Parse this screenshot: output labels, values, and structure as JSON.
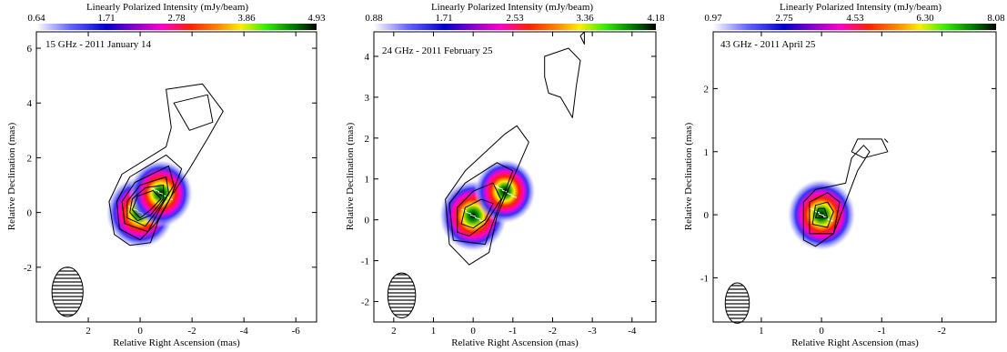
{
  "chart_data": [
    {
      "type": "heatmap",
      "epoch_label": "15 GHz - 2011 January 14",
      "colorbar": {
        "title": "Linearly Polarized Intensity (mJy/beam)",
        "ticks": [
          0.64,
          1.71,
          2.78,
          3.86,
          4.93
        ],
        "range": [
          0.64,
          4.93
        ]
      },
      "xlabel": "Relative Right Ascension (mas)",
      "ylabel": "Relative Declination (mas)",
      "xlim": [
        4.0,
        -6.8
      ],
      "ylim": [
        -4.0,
        6.6
      ],
      "xticks": [
        2,
        0,
        -2,
        -4,
        -6
      ],
      "yticks": [
        -2,
        0,
        2,
        4,
        6
      ],
      "polarization_peaks": [
        {
          "x": 0.0,
          "y": 0.0,
          "value": 4.93
        },
        {
          "x": -0.8,
          "y": 0.7,
          "value": 4.5
        }
      ],
      "contours": [
        [
          [
            1.0,
            -0.8
          ],
          [
            1.2,
            0.4
          ],
          [
            0.7,
            1.4
          ],
          [
            -1.0,
            2.4
          ],
          [
            -1.2,
            3.1
          ],
          [
            -1.0,
            4.5
          ],
          [
            -2.4,
            4.7
          ],
          [
            -3.2,
            3.7
          ],
          [
            -2.6,
            2.7
          ],
          [
            -1.9,
            1.6
          ],
          [
            -1.2,
            0.6
          ],
          [
            -0.7,
            -0.3
          ],
          [
            -0.4,
            -1.1
          ],
          [
            0.4,
            -1.2
          ]
        ],
        [
          [
            -1.3,
            4.0
          ],
          [
            -2.6,
            4.3
          ],
          [
            -2.8,
            3.3
          ],
          [
            -1.9,
            3.0
          ]
        ],
        [
          [
            0.8,
            -0.6
          ],
          [
            0.9,
            0.4
          ],
          [
            0.4,
            1.3
          ],
          [
            -1.0,
            2.1
          ],
          [
            -1.6,
            1.6
          ],
          [
            -1.2,
            0.6
          ],
          [
            -0.6,
            -0.4
          ],
          [
            0.0,
            -1.0
          ]
        ],
        [
          [
            0.6,
            -0.4
          ],
          [
            0.7,
            0.4
          ],
          [
            0.2,
            1.1
          ],
          [
            -1.1,
            1.7
          ],
          [
            -1.3,
            1.0
          ],
          [
            -0.8,
            0.2
          ],
          [
            -0.3,
            -0.7
          ]
        ],
        [
          [
            0.5,
            -0.2
          ],
          [
            0.5,
            0.4
          ],
          [
            0.0,
            1.0
          ],
          [
            -1.0,
            1.3
          ],
          [
            -1.1,
            0.7
          ],
          [
            -0.6,
            0.0
          ],
          [
            -0.2,
            -0.5
          ]
        ],
        [
          [
            0.4,
            0.0
          ],
          [
            0.3,
            0.5
          ],
          [
            -0.2,
            0.9
          ],
          [
            -0.9,
            1.0
          ],
          [
            -0.9,
            0.5
          ],
          [
            -0.4,
            -0.1
          ],
          [
            0.1,
            -0.3
          ]
        ],
        [
          [
            0.3,
            0.1
          ],
          [
            0.1,
            0.6
          ],
          [
            -0.5,
            0.8
          ],
          [
            -0.8,
            0.5
          ],
          [
            -0.4,
            0.1
          ],
          [
            0.0,
            -0.2
          ]
        ]
      ],
      "beam": {
        "x": 2.8,
        "y": -2.9,
        "major": 0.9,
        "minor": 0.6
      }
    },
    {
      "type": "heatmap",
      "epoch_label": "24 GHz - 2011 February 25",
      "colorbar": {
        "title": "Linearly Polarized Intensity (mJy/beam)",
        "ticks": [
          0.88,
          1.71,
          2.53,
          3.36,
          4.18
        ],
        "range": [
          0.88,
          4.18
        ]
      },
      "xlabel": "Relative Right Ascension (mas)",
      "ylabel": "Relative Declination (mas)",
      "xlim": [
        2.5,
        -4.6
      ],
      "ylim": [
        -2.5,
        4.6
      ],
      "xticks": [
        2,
        1,
        0,
        -1,
        -2,
        -3,
        -4
      ],
      "yticks": [
        -2,
        -1,
        0,
        1,
        2,
        3,
        4
      ],
      "polarization_peaks": [
        {
          "x": 0.0,
          "y": 0.1,
          "value": 4.18
        },
        {
          "x": -0.8,
          "y": 0.7,
          "value": 3.6
        }
      ],
      "contours": [
        [
          [
            0.6,
            -0.6
          ],
          [
            0.7,
            0.5
          ],
          [
            0.2,
            1.2
          ],
          [
            -0.8,
            2.1
          ],
          [
            -1.1,
            2.3
          ],
          [
            -1.4,
            1.9
          ],
          [
            -1.0,
            1.0
          ],
          [
            -0.6,
            0.1
          ],
          [
            -0.4,
            -0.8
          ],
          [
            0.1,
            -1.1
          ]
        ],
        [
          [
            -1.8,
            4.0
          ],
          [
            -2.4,
            4.2
          ],
          [
            -2.7,
            3.9
          ],
          [
            -2.6,
            3.3
          ],
          [
            -2.5,
            2.5
          ],
          [
            -2.2,
            3.0
          ],
          [
            -1.9,
            3.1
          ],
          [
            -1.8,
            3.5
          ]
        ],
        [
          [
            -2.7,
            4.5
          ],
          [
            -2.8,
            4.6
          ],
          [
            -2.8,
            4.3
          ]
        ],
        [
          [
            0.5,
            -0.5
          ],
          [
            0.6,
            0.4
          ],
          [
            0.2,
            0.9
          ],
          [
            -0.6,
            1.4
          ],
          [
            -1.0,
            1.2
          ],
          [
            -0.6,
            0.2
          ],
          [
            -0.3,
            -0.6
          ]
        ],
        [
          [
            0.4,
            -0.3
          ],
          [
            0.4,
            0.3
          ],
          [
            0.0,
            0.7
          ],
          [
            -0.5,
            0.9
          ],
          [
            -0.7,
            0.5
          ],
          [
            -0.3,
            -0.1
          ],
          [
            0.1,
            -0.4
          ]
        ],
        [
          [
            0.3,
            -0.1
          ],
          [
            0.2,
            0.3
          ],
          [
            -0.2,
            0.5
          ],
          [
            -0.5,
            0.4
          ],
          [
            -0.3,
            0.0
          ],
          [
            0.0,
            -0.2
          ]
        ]
      ],
      "beam": {
        "x": 1.8,
        "y": -1.85,
        "major": 0.55,
        "minor": 0.35
      }
    },
    {
      "type": "heatmap",
      "epoch_label": "43 GHz - 2011 April 25",
      "colorbar": {
        "title": "Linearly Polarized Intensity (mJy/beam)",
        "ticks": [
          0.97,
          2.75,
          4.53,
          6.3,
          8.08
        ],
        "range": [
          0.97,
          8.08
        ]
      },
      "xlabel": "Relative Right Ascension (mas)",
      "ylabel": "Relative Declination (mas)",
      "xlim": [
        1.8,
        -2.9
      ],
      "ylim": [
        -1.7,
        2.9
      ],
      "xticks": [
        1,
        0,
        -1,
        -2
      ],
      "yticks": [
        -1,
        0,
        1,
        2
      ],
      "polarization_peaks": [
        {
          "x": 0.0,
          "y": 0.0,
          "value": 8.08
        }
      ],
      "contours": [
        [
          [
            0.3,
            -0.4
          ],
          [
            0.3,
            0.2
          ],
          [
            0.1,
            0.4
          ],
          [
            -0.4,
            0.5
          ],
          [
            -0.5,
            0.9
          ],
          [
            -0.7,
            1.1
          ],
          [
            -0.8,
            1.0
          ],
          [
            -0.6,
            0.7
          ],
          [
            -0.4,
            0.2
          ],
          [
            -0.2,
            -0.3
          ],
          [
            0.1,
            -0.5
          ]
        ],
        [
          [
            -0.5,
            1.0
          ],
          [
            -0.6,
            1.2
          ],
          [
            -1.0,
            1.2
          ],
          [
            -1.1,
            1.0
          ],
          [
            -0.7,
            0.9
          ]
        ],
        [
          [
            -1.05,
            1.2
          ],
          [
            -1.1,
            1.15
          ]
        ],
        [
          [
            0.2,
            -0.3
          ],
          [
            0.2,
            0.2
          ],
          [
            -0.1,
            0.35
          ],
          [
            -0.3,
            0.2
          ],
          [
            -0.2,
            -0.3
          ]
        ],
        [
          [
            0.15,
            -0.15
          ],
          [
            0.1,
            0.15
          ],
          [
            -0.1,
            0.2
          ],
          [
            -0.2,
            0.05
          ],
          [
            -0.1,
            -0.2
          ]
        ],
        [
          [
            0.1,
            -0.05
          ],
          [
            0.05,
            0.1
          ],
          [
            -0.05,
            0.1
          ],
          [
            -0.1,
            -0.05
          ]
        ]
      ],
      "beam": {
        "x": 1.4,
        "y": -1.4,
        "major": 0.32,
        "minor": 0.2
      }
    }
  ]
}
